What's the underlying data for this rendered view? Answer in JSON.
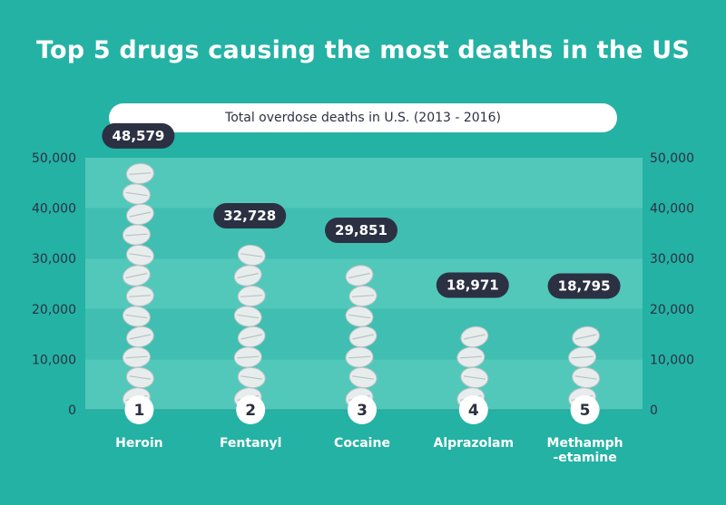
{
  "title": "Top 5 drugs causing the most deaths in the US",
  "subtitle": "Total overdose deaths in U.S. (2013 - 2016)",
  "colors": {
    "background": "#24b2a4",
    "plot_band_light": "#52c8bb",
    "plot_band_dark": "#40beb1",
    "label_pill": "#2b3142",
    "pill": "#e7ecec",
    "pill_edge": "#b9c3c4",
    "axis_text": "#2b3142"
  },
  "chart_data": {
    "type": "bar",
    "categories": [
      "Heroin",
      "Fentanyl",
      "Cocaine",
      "Alprazolam",
      "Methamph\n-etamine"
    ],
    "ranks": [
      "1",
      "2",
      "3",
      "4",
      "5"
    ],
    "values": [
      48579,
      32728,
      29851,
      18971,
      18795
    ],
    "value_labels": [
      "48,579",
      "32,728",
      "29,851",
      "18,971",
      "18,795"
    ],
    "ylim": [
      0,
      50000
    ],
    "yticks": [
      0,
      10000,
      20000,
      30000,
      40000,
      50000
    ],
    "ytick_labels": [
      "0",
      "10,000",
      "20,000",
      "30,000",
      "40,000",
      "50,000"
    ],
    "secondary_axis": true,
    "grid": "alternating bands"
  }
}
